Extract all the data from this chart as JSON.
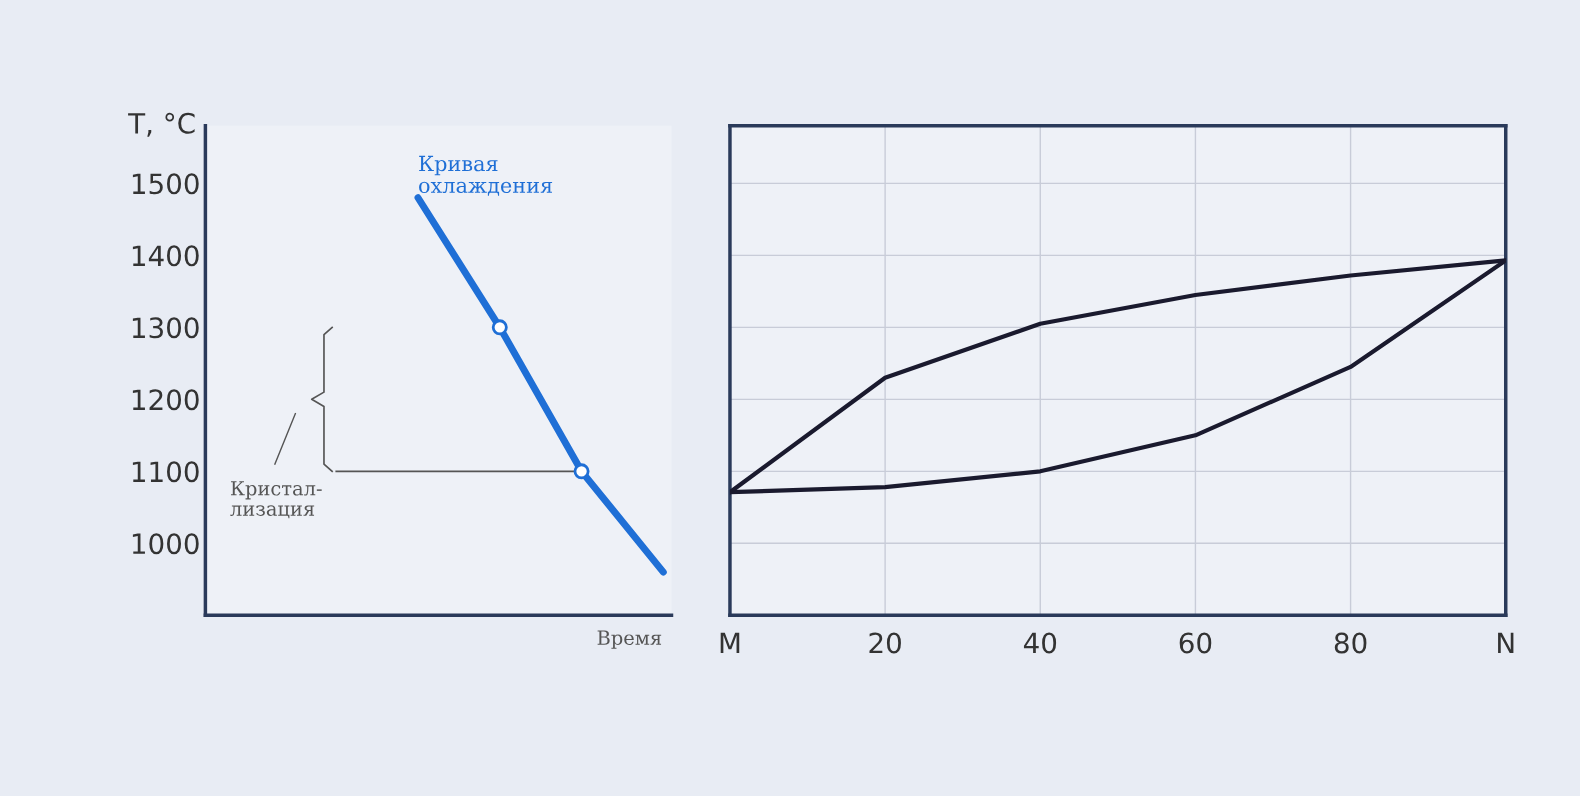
{
  "chart_data": [
    {
      "type": "line",
      "ylabel": "T, °C",
      "xlabel": "Время",
      "categories": [
        null,
        null,
        null,
        null
      ],
      "series": [
        {
          "type": "line",
          "color": "#1f6fd6",
          "values": [
            1480,
            1300,
            1100,
            960
          ]
        },
        {
          "type": "scatter",
          "color": "#1f6fd6",
          "marker": "circle",
          "values": [
            null,
            1300,
            1100,
            null
          ]
        }
      ],
      "ylim": [
        900,
        1580
      ],
      "yticks": [
        1000,
        1100,
        1200,
        1300,
        1400,
        1500
      ],
      "tick_labels": "y",
      "grid": false,
      "ref_lines": [
        {
          "axis": "y",
          "value": 1100,
          "color": "#555555"
        }
      ],
      "annotations": [
        "Кривая\nохлаждения",
        "Кристал-\nлизация"
      ]
    },
    {
      "type": "line",
      "x": [
        0,
        20,
        40,
        60,
        80,
        100
      ],
      "series": [
        {
          "color": "#1a1a2e",
          "values": [
            1071,
            1230,
            1305,
            1345,
            1372,
            1393
          ]
        },
        {
          "color": "#1a1a2e",
          "values": [
            1071,
            1078,
            1100,
            1150,
            1245,
            1393
          ]
        }
      ],
      "xlim": [
        0,
        100
      ],
      "xticks": [
        {
          "value": 0,
          "label": "M"
        },
        20,
        40,
        60,
        80,
        {
          "value": 100,
          "label": "N"
        }
      ],
      "ylim": [
        900,
        1580
      ],
      "tick_labels": "x",
      "grid": true
    }
  ]
}
